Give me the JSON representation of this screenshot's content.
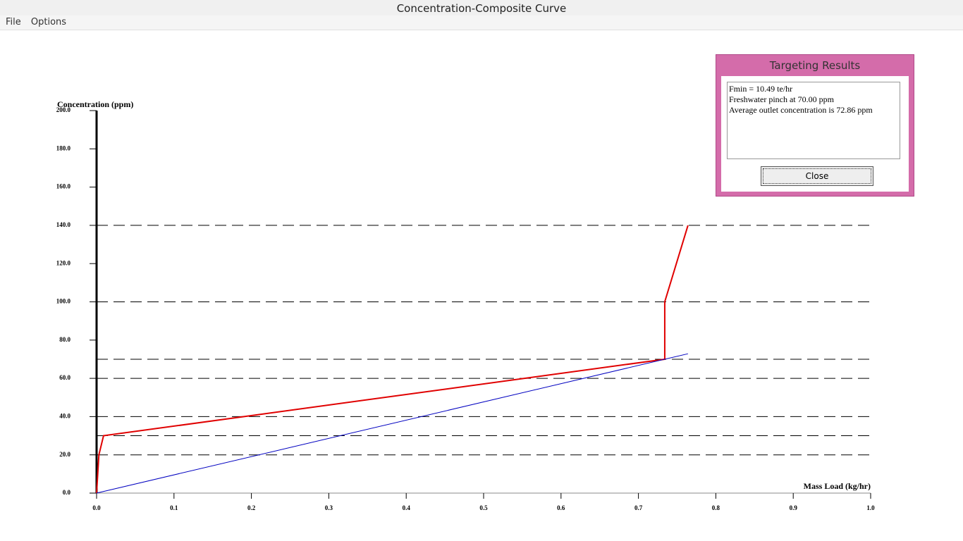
{
  "window": {
    "title": "Concentration-Composite Curve",
    "menu": [
      "File",
      "Options"
    ]
  },
  "dialog": {
    "title": "Targeting Results",
    "lines": [
      "Fmin = 10.49 te/hr",
      "Freshwater pinch at 70.00 ppm",
      "Average outlet concentration is 72.86 ppm"
    ],
    "button": "Close"
  },
  "chart_data": {
    "type": "line",
    "ylabel": "Concentration (ppm)",
    "xlabel": "Mass Load (kg/hr)",
    "xlim": [
      0,
      1
    ],
    "ylim": [
      0,
      200
    ],
    "xticks": [
      {
        "value": 0,
        "label": "0.0"
      },
      0.1,
      0.2,
      0.3,
      0.4,
      0.5,
      0.6,
      0.7,
      0.8,
      0.9,
      {
        "value": 1,
        "label": "1.0"
      }
    ],
    "yticks": [
      {
        "value": 0,
        "label": "0.0"
      },
      {
        "value": 20,
        "label": "20.0"
      },
      {
        "value": 40,
        "label": "40.0"
      },
      {
        "value": 60,
        "label": "60.0"
      },
      {
        "value": 80,
        "label": "80.0"
      },
      {
        "value": 100,
        "label": "100.0"
      },
      {
        "value": 120,
        "label": "120.0"
      },
      {
        "value": 140,
        "label": "140.0"
      },
      {
        "value": 160,
        "label": "160.0"
      },
      {
        "value": 180,
        "label": "180.0"
      },
      {
        "value": 200,
        "label": "200.0"
      }
    ],
    "hlines": [
      20,
      30,
      40,
      60,
      70,
      100,
      140
    ],
    "hline_color": "#000000",
    "series": [
      {
        "color": "#e00000",
        "x": [
          0,
          0.003,
          0.009,
          0.734,
          0.734,
          0.764
        ],
        "values": [
          0,
          20,
          30,
          70,
          100,
          140
        ]
      },
      {
        "color": "#0000c0",
        "x": [
          0,
          0.764
        ],
        "values": [
          0,
          72.86
        ]
      }
    ]
  }
}
